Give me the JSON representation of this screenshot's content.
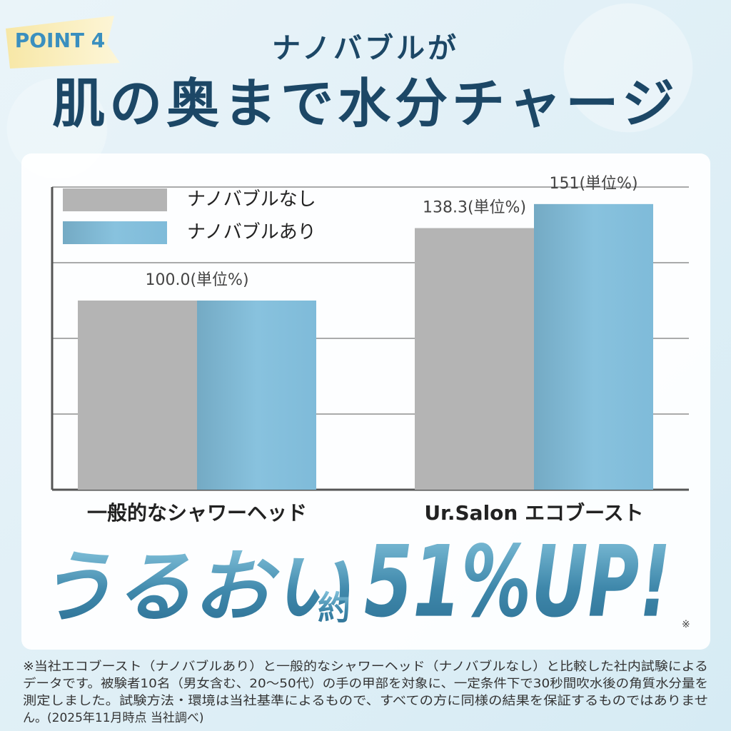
{
  "badge": "POINT 4",
  "chart_data": {
    "type": "bar",
    "subtitle": "ナノバブルが",
    "title": "肌の奥まで水分チャージ",
    "categories": [
      "一般的なシャワーヘッド",
      "Ur.Salon エコブースト"
    ],
    "series": [
      {
        "name": "ナノバブルなし",
        "color": "#b4b4b4",
        "values": [
          100.0,
          138.3
        ],
        "value_labels": [
          "100.0(単位%)",
          "138.3(単位%)"
        ]
      },
      {
        "name": "ナノバブルあり",
        "color": "#82bddb",
        "values": [
          100.0,
          151
        ],
        "value_labels": [
          null,
          "151(単位%)"
        ]
      }
    ],
    "ylim": [
      0,
      160
    ],
    "yticks": [
      0,
      40,
      80,
      120,
      160
    ],
    "grid": true,
    "legend": "top-left"
  },
  "headline": {
    "part1": "うるおい",
    "part2": "約",
    "part3": "51%UP!",
    "mark": "※"
  },
  "footnote": [
    "※当社エコブースト（ナノバブルあり）と一般的なシャワーヘッド（ナノバブルなし）と比較した社内試験による",
    "データです。被験者10名（男女含む、20〜50代）の手の甲部を対象に、一定条件下で30秒間吹水後の角質水分量を",
    "測定しました。試験方法・環境は当社基準によるもので、すべての方に同様の結果を保証するものではありませ",
    "ん。(2025年11月時点 当社調べ)"
  ]
}
